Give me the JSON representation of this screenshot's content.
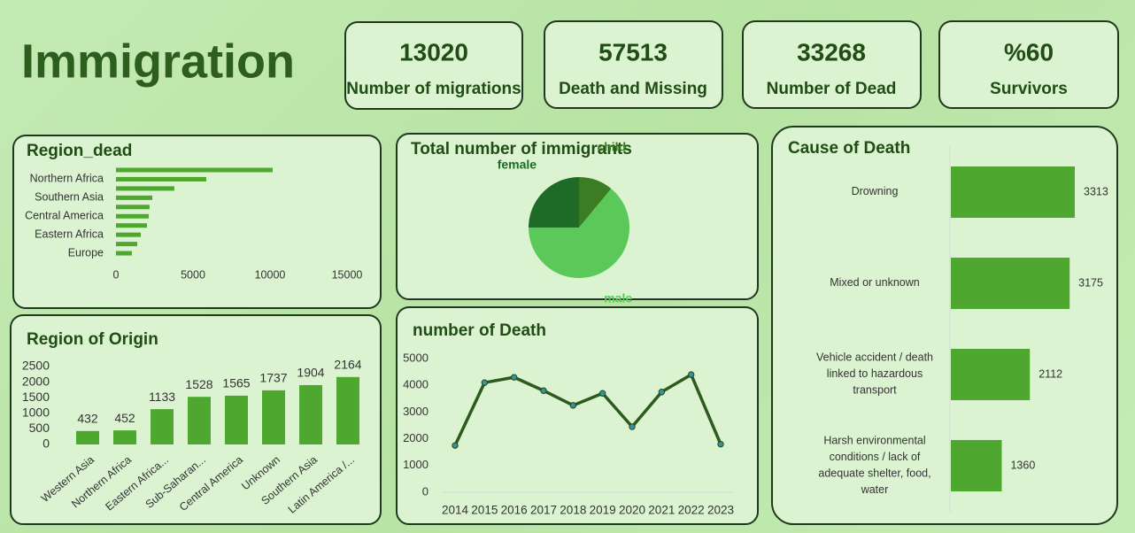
{
  "title": "Immigration",
  "kpis": [
    {
      "value": 13020,
      "label": "Number of migrations"
    },
    {
      "value": 57513,
      "label": "Death and Missing"
    },
    {
      "value": 33268,
      "label": "Number of Dead"
    },
    {
      "value": "%60",
      "label": "Survivors"
    }
  ],
  "chart_data": [
    {
      "type": "hbar",
      "title": "Region_dead",
      "categories": [
        null,
        "Northern Africa",
        null,
        "Southern Asia",
        null,
        "Central America",
        null,
        "Eastern Africa",
        null,
        "Europe"
      ],
      "values": [
        10170,
        5860,
        3790,
        2360,
        2180,
        2130,
        2010,
        1610,
        1380,
        1030
      ],
      "color": "#4ea72e",
      "xlim": [
        0,
        15000
      ],
      "xticks": [
        0,
        5000,
        10000,
        15000
      ]
    },
    {
      "type": "pie",
      "title": "Total number of immigrants",
      "categories": [
        "child",
        "male",
        "female"
      ],
      "values": [
        11,
        64,
        25
      ],
      "colors": [
        "#3a7d22",
        "#5bc85a",
        "#1e6b27"
      ]
    },
    {
      "type": "hbar_labeled",
      "title": "Cause of Death",
      "categories": [
        "Drowning",
        "Mixed or unknown",
        "Vehicle accident / death linked to hazardous transport",
        "Harsh environmental conditions / lack of adequate shelter, food, water"
      ],
      "values": [
        3313,
        3175,
        2112,
        1360
      ],
      "color": "#4ea72e"
    },
    {
      "type": "bar",
      "title": "Region of Origin",
      "categories": [
        "Western Asia",
        "Northern Africa",
        "Eastern Africa...",
        "Sub-Saharan...",
        "Central America",
        "Unknown",
        "Southern Asia",
        "Latin America /..."
      ],
      "values": [
        432,
        452,
        1133,
        1528,
        1565,
        1737,
        1904,
        2164
      ],
      "color": "#4ea72e",
      "ylim": [
        0,
        2500
      ],
      "yticks": [
        0,
        500,
        1000,
        1500,
        2000,
        2500
      ]
    },
    {
      "type": "line",
      "title": "number of Death",
      "categories": [
        "2014",
        "2015",
        "2016",
        "2017",
        "2018",
        "2019",
        "2020",
        "2021",
        "2022",
        "2023"
      ],
      "values": [
        1750,
        4100,
        4300,
        3800,
        3250,
        3700,
        2450,
        3750,
        4400,
        1800
      ],
      "color": "#2d5a1f",
      "ylim": [
        0,
        5000
      ],
      "yticks": [
        0,
        1000,
        2000,
        3000,
        4000,
        5000
      ]
    }
  ]
}
